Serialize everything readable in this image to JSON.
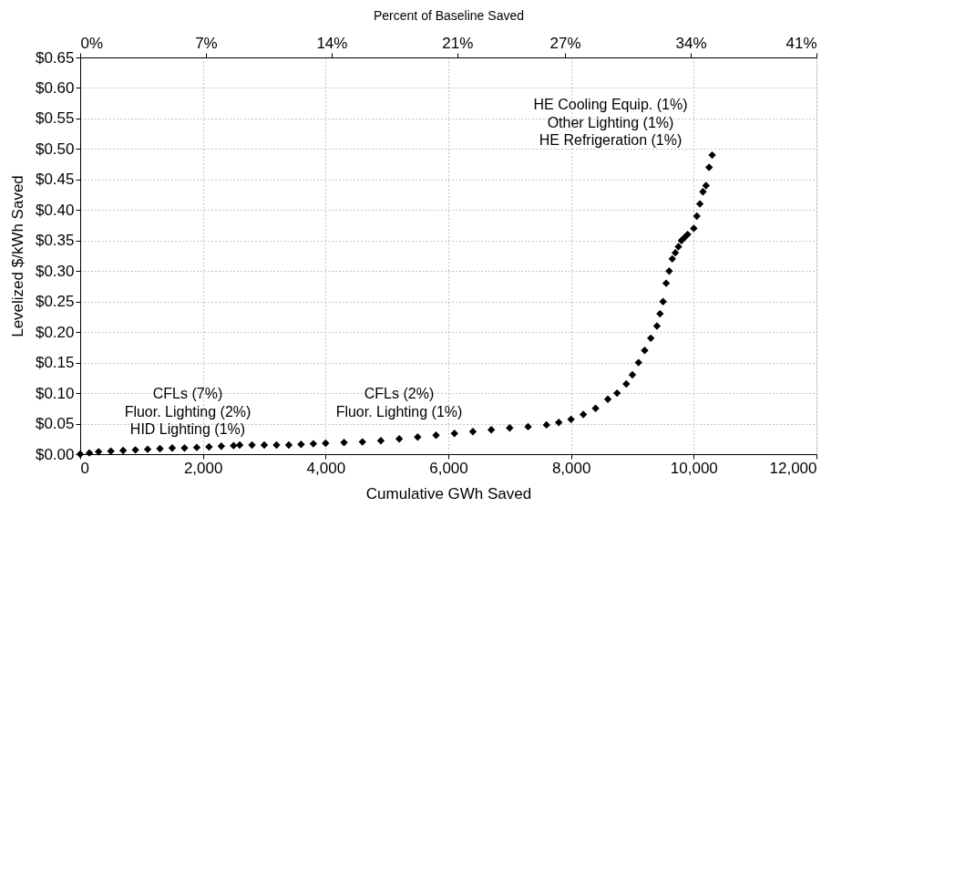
{
  "chart_data": {
    "type": "scatter",
    "xlabel": "Cumulative GWh Saved",
    "ylabel": "Levelized $/kWh Saved",
    "x2label": "Percent of Baseline Saved",
    "marker": "diamond",
    "grid": true,
    "xlim": [
      0,
      12000
    ],
    "xticks": [
      0,
      {
        "value": 2000,
        "label": "2,000"
      },
      {
        "value": 4000,
        "label": "4,000"
      },
      {
        "value": 6000,
        "label": "6,000"
      },
      {
        "value": 8000,
        "label": "8,000"
      },
      {
        "value": 10000,
        "label": "10,000"
      },
      {
        "value": 12000,
        "label": "12,000"
      }
    ],
    "x2lim": [
      0,
      41
    ],
    "x2ticks": [
      {
        "value": 0,
        "label": "0%"
      },
      {
        "value": 7,
        "label": "7%"
      },
      {
        "value": 14,
        "label": "14%"
      },
      {
        "value": 21,
        "label": "21%"
      },
      {
        "value": 27,
        "label": "27%"
      },
      {
        "value": 34,
        "label": "34%"
      },
      {
        "value": 41,
        "label": "41%"
      }
    ],
    "ylim": [
      0,
      0.65
    ],
    "yticks": [
      {
        "value": 0,
        "label": "$0.00"
      },
      {
        "value": 0.05,
        "label": "$0.05"
      },
      {
        "value": 0.1,
        "label": "$0.10"
      },
      {
        "value": 0.15,
        "label": "$0.15"
      },
      {
        "value": 0.2,
        "label": "$0.20"
      },
      {
        "value": 0.25,
        "label": "$0.25"
      },
      {
        "value": 0.3,
        "label": "$0.30"
      },
      {
        "value": 0.35,
        "label": "$0.35"
      },
      {
        "value": 0.4,
        "label": "$0.40"
      },
      {
        "value": 0.45,
        "label": "$0.45"
      },
      {
        "value": 0.5,
        "label": "$0.50"
      },
      {
        "value": 0.55,
        "label": "$0.55"
      },
      {
        "value": 0.6,
        "label": "$0.60"
      },
      {
        "value": 0.65,
        "label": "$0.65"
      }
    ],
    "series": [
      {
        "color": "#000000",
        "x": [
          0,
          150,
          300,
          500,
          700,
          900,
          1100,
          1300,
          1500,
          1700,
          1900,
          2100,
          2300,
          2500,
          2600,
          2800,
          3000,
          3200,
          3400,
          3600,
          3800,
          4000,
          4300,
          4600,
          4900,
          5200,
          5500,
          5800,
          6100,
          6400,
          6700,
          7000,
          7300,
          7600,
          7800,
          8000,
          8200,
          8400,
          8600,
          8750,
          8900,
          9000,
          9100,
          9200,
          9300,
          9400,
          9450,
          9500,
          9550,
          9600,
          9650,
          9700,
          9750,
          9800,
          9850,
          9900,
          10000,
          10050,
          10100,
          10150,
          10200,
          10250,
          10300
        ],
        "values": [
          0,
          0.002,
          0.004,
          0.005,
          0.006,
          0.007,
          0.008,
          0.009,
          0.01,
          0.01,
          0.011,
          0.012,
          0.013,
          0.014,
          0.015,
          0.015,
          0.015,
          0.015,
          0.015,
          0.016,
          0.017,
          0.018,
          0.019,
          0.02,
          0.022,
          0.025,
          0.028,
          0.031,
          0.034,
          0.037,
          0.04,
          0.043,
          0.045,
          0.048,
          0.052,
          0.057,
          0.065,
          0.075,
          0.09,
          0.1,
          0.115,
          0.13,
          0.15,
          0.17,
          0.19,
          0.21,
          0.23,
          0.25,
          0.28,
          0.3,
          0.32,
          0.33,
          0.34,
          0.35,
          0.355,
          0.36,
          0.37,
          0.39,
          0.41,
          0.43,
          0.44,
          0.47,
          0.49
        ]
      }
    ],
    "annotations": [
      "CFLs (7%)",
      "Fluor. Lighting (2%)",
      "HID Lighting (1%)",
      "CFLs (2%)",
      "Fluor. Lighting (1%)",
      "HE Cooling Equip. (1%)",
      "Other Lighting (1%)",
      "HE Refrigeration (1%)"
    ]
  }
}
